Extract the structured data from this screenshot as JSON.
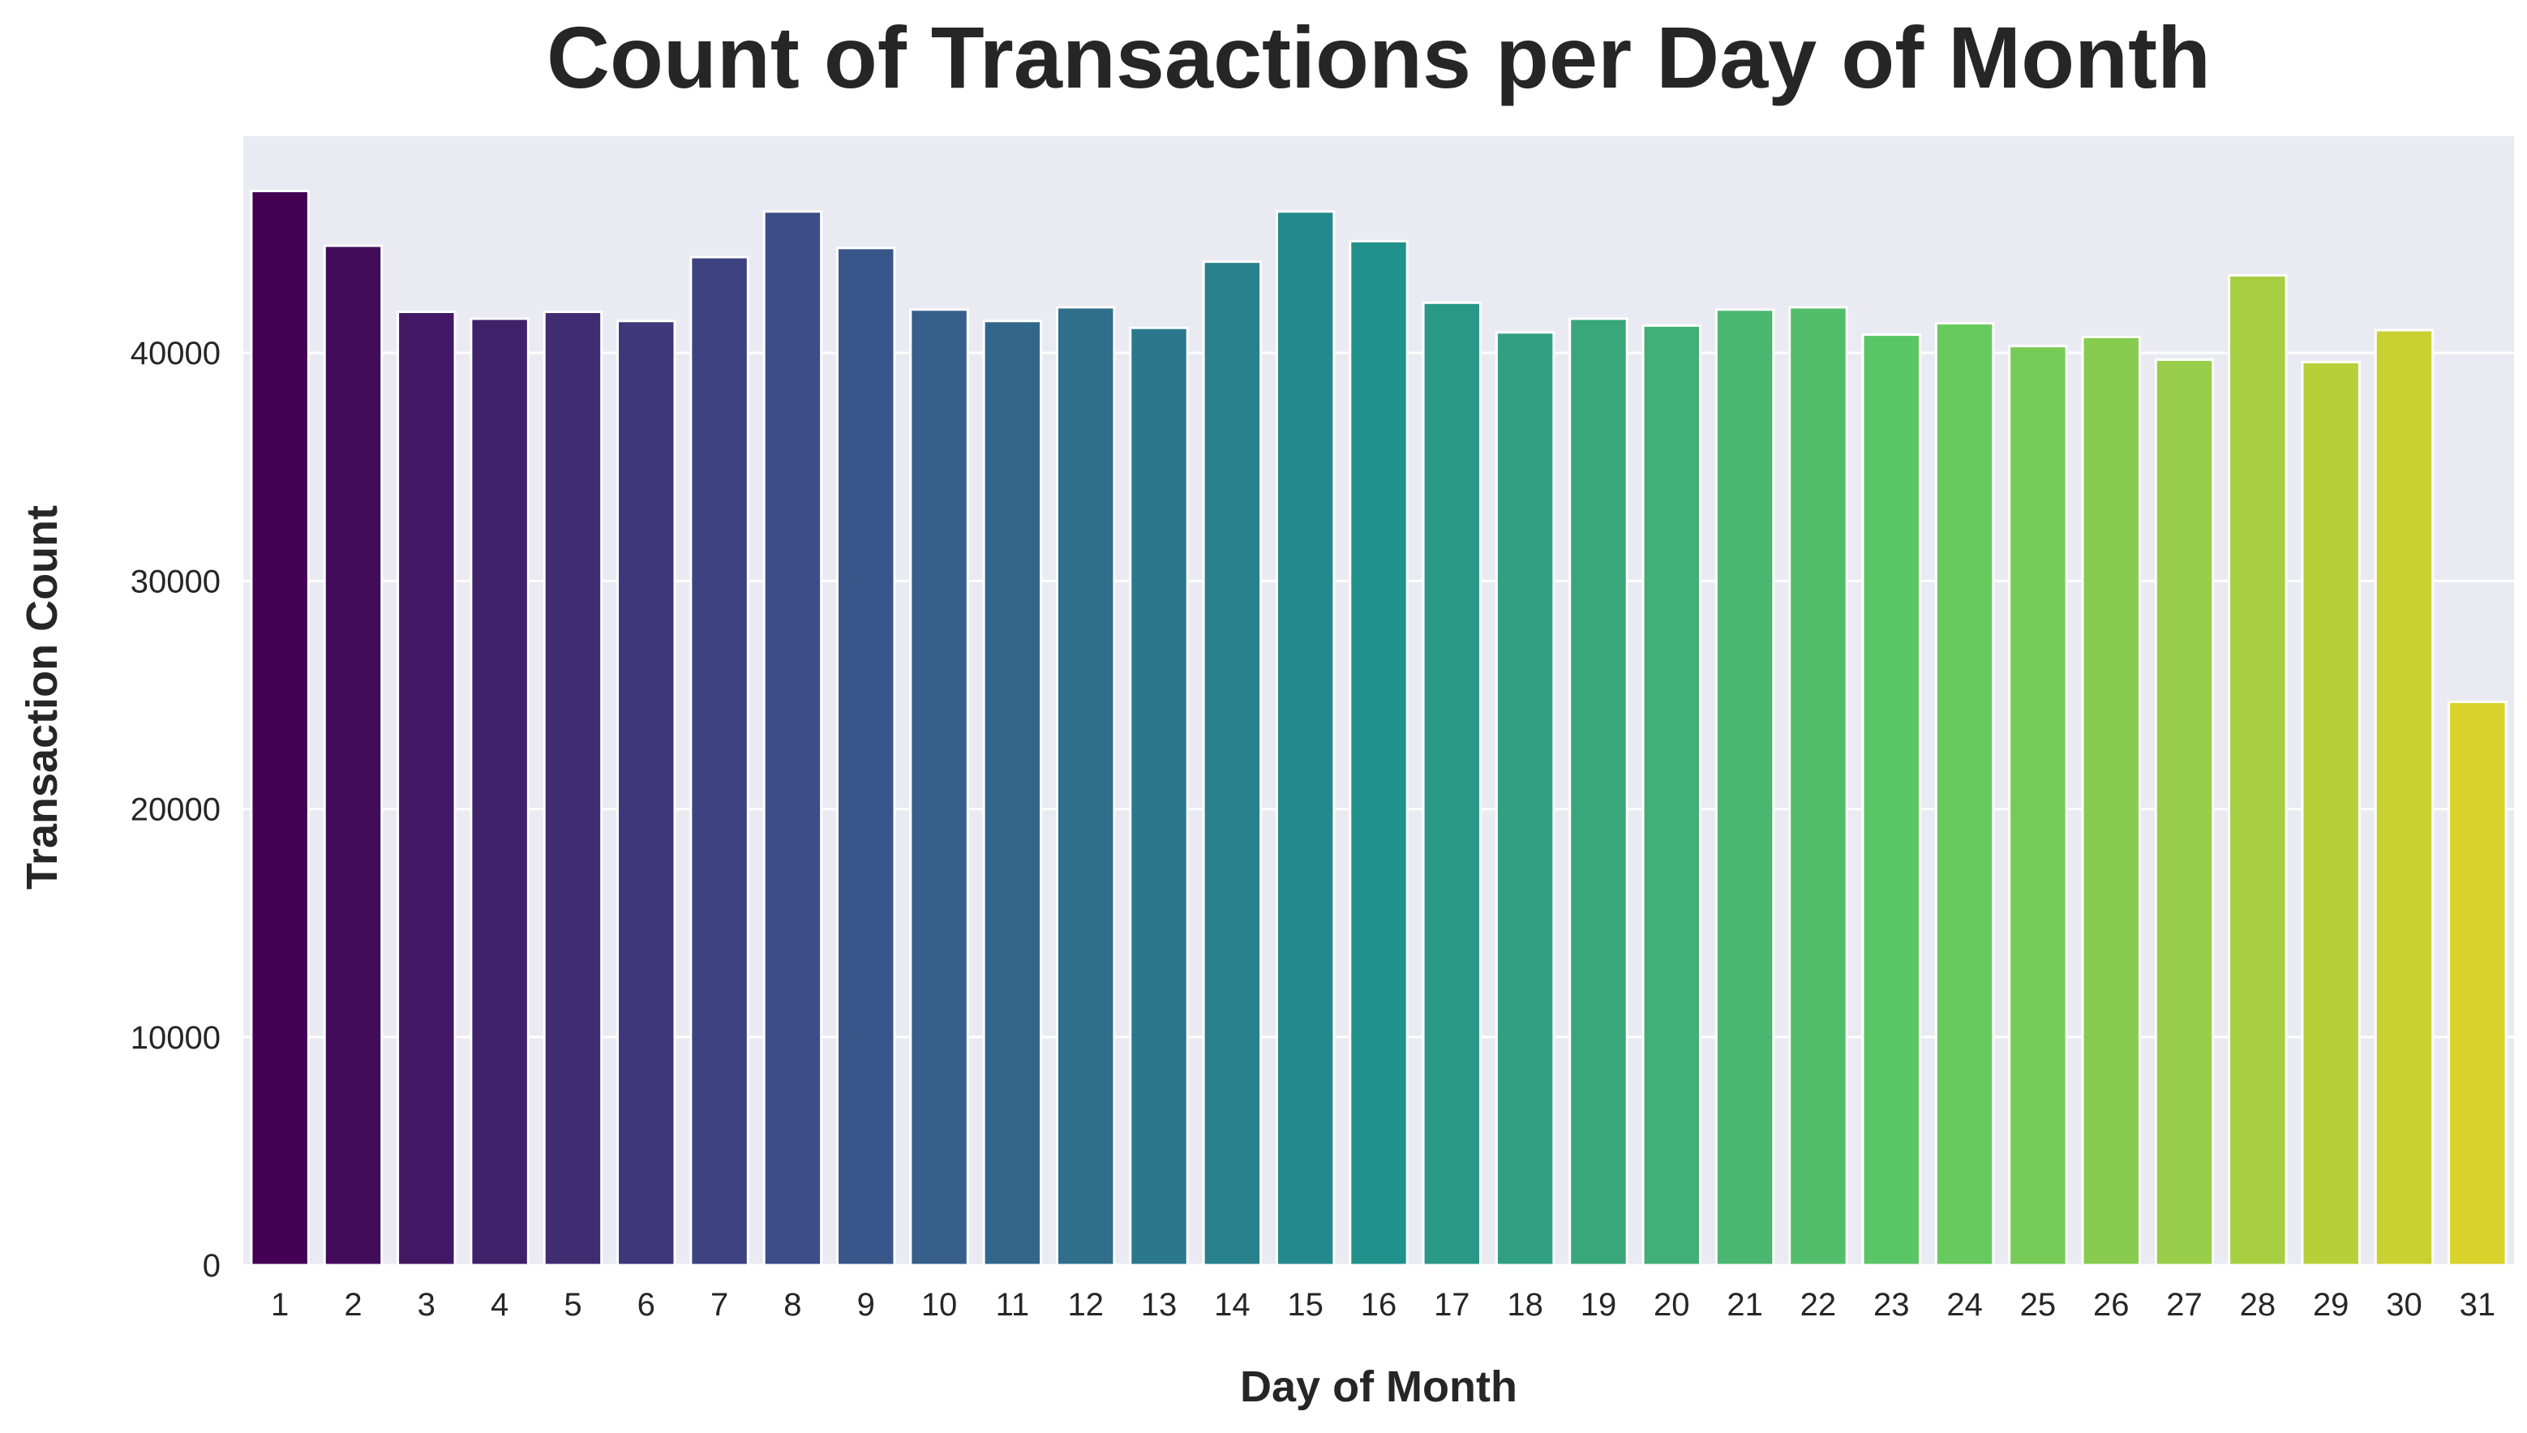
{
  "chart_data": {
    "type": "bar",
    "title": "Count of Transactions per Day of Month",
    "xlabel": "Day of Month",
    "ylabel": "Transaction Count",
    "categories": [
      "1",
      "2",
      "3",
      "4",
      "5",
      "6",
      "7",
      "8",
      "9",
      "10",
      "11",
      "12",
      "13",
      "14",
      "15",
      "16",
      "17",
      "18",
      "19",
      "20",
      "21",
      "22",
      "23",
      "24",
      "25",
      "26",
      "27",
      "28",
      "29",
      "30",
      "31"
    ],
    "values": [
      47100,
      44700,
      41800,
      41500,
      41800,
      41400,
      44200,
      46200,
      44600,
      41900,
      41400,
      42000,
      41100,
      44000,
      46200,
      44900,
      42200,
      40900,
      41500,
      41200,
      41900,
      42000,
      40800,
      41300,
      40300,
      40700,
      39700,
      43400,
      39600,
      41000,
      24700
    ],
    "yticks": [
      0,
      10000,
      20000,
      30000,
      40000
    ],
    "ytick_labels": [
      "0",
      "10000",
      "20000",
      "30000",
      "40000"
    ],
    "ylim": [
      0,
      49500
    ],
    "grid": true,
    "legend": "none",
    "colors": {
      "background": "#eaeaf2",
      "grid": "#ffffff",
      "palette_start": "#440154",
      "palette_end": "#d8d22a"
    }
  }
}
